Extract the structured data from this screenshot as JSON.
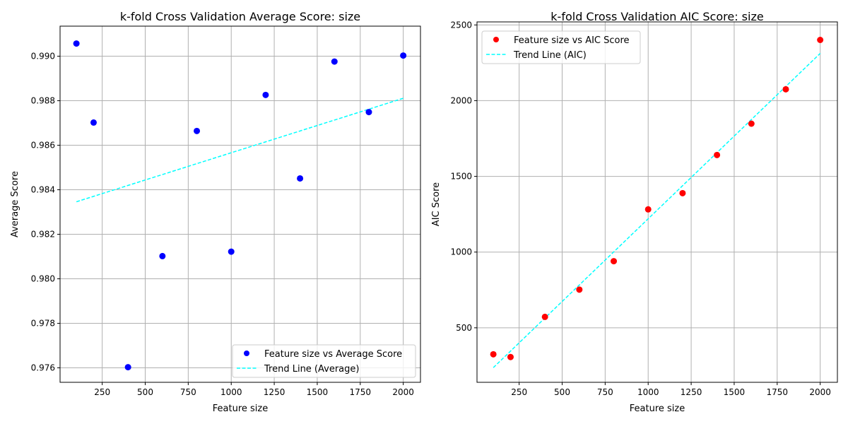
{
  "chart_data": [
    {
      "type": "scatter",
      "title": "k-fold Cross Validation Average Score: size",
      "xlabel": "Feature size",
      "ylabel": "Average Score",
      "xlim": [
        5,
        2100
      ],
      "ylim": [
        0.97535,
        0.99135
      ],
      "xticks": [
        250,
        500,
        750,
        1000,
        1250,
        1500,
        1750,
        2000
      ],
      "yticks": [
        0.976,
        0.978,
        0.98,
        0.982,
        0.984,
        0.986,
        0.988,
        0.99
      ],
      "ytick_labels": [
        "0.976",
        "0.978",
        "0.980",
        "0.982",
        "0.984",
        "0.986",
        "0.988",
        "0.990"
      ],
      "grid": true,
      "legend_position": "lower-right",
      "series": [
        {
          "name": "Feature size vs Average Score",
          "kind": "scatter",
          "color": "#0000ff",
          "x": [
            100,
            200,
            400,
            600,
            800,
            1000,
            1200,
            1400,
            1600,
            1800,
            2000
          ],
          "y": [
            0.99057,
            0.98702,
            0.97603,
            0.98102,
            0.98664,
            0.98122,
            0.98826,
            0.98451,
            0.98976,
            0.98749,
            0.99003
          ]
        },
        {
          "name": "Trend Line (Average)",
          "kind": "line",
          "style": "dashed",
          "color": "#00ffff",
          "x": [
            100,
            2000
          ],
          "y": [
            0.98346,
            0.98811
          ]
        }
      ]
    },
    {
      "type": "scatter",
      "title": "k-fold Cross Validation AIC Score: size",
      "xlabel": "Feature size",
      "ylabel": "AIC Score",
      "xlim": [
        5,
        2100
      ],
      "ylim": [
        140,
        2520
      ],
      "xticks": [
        250,
        500,
        750,
        1000,
        1250,
        1500,
        1750,
        2000
      ],
      "yticks": [
        500,
        1000,
        1500,
        2000,
        2500
      ],
      "ytick_labels": [
        "500",
        "1000",
        "1500",
        "2000",
        "2500"
      ],
      "grid": true,
      "legend_position": "upper-left",
      "series": [
        {
          "name": "Feature size vs AIC Score",
          "kind": "scatter",
          "color": "#ff0000",
          "x": [
            100,
            200,
            400,
            600,
            800,
            1000,
            1200,
            1400,
            1600,
            1800,
            2000
          ],
          "y": [
            325,
            307,
            572,
            752,
            940,
            1282,
            1389,
            1641,
            1848,
            2075,
            2401
          ]
        },
        {
          "name": "Trend Line (AIC)",
          "kind": "line",
          "style": "dashed",
          "color": "#00ffff",
          "x": [
            100,
            2000
          ],
          "y": [
            237,
            2312
          ]
        }
      ]
    }
  ]
}
